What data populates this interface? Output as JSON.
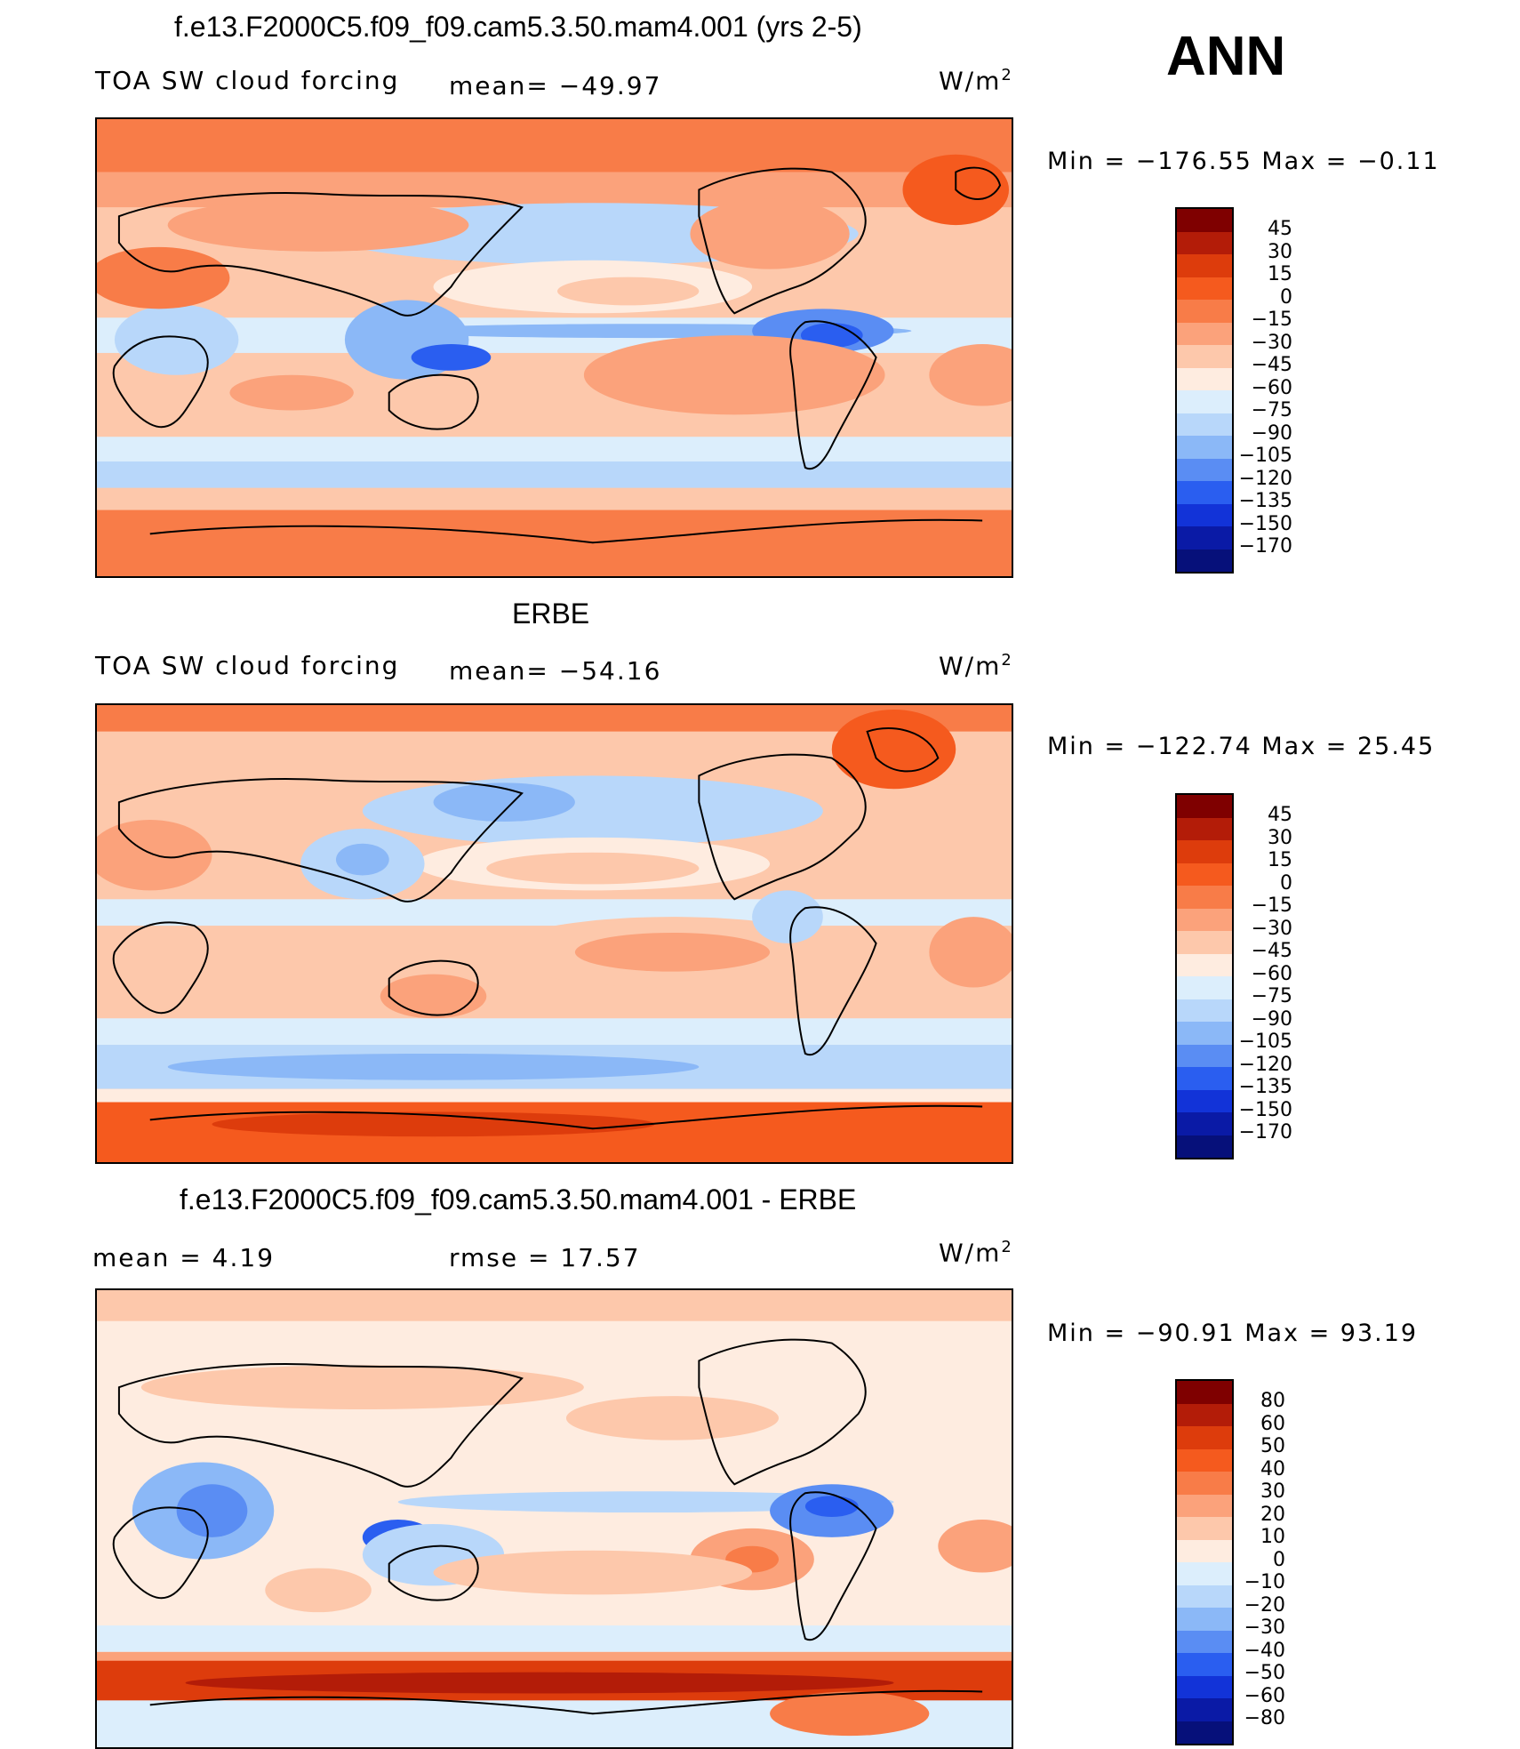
{
  "header": {
    "season": "ANN",
    "units": "W/m",
    "units_exp": "2"
  },
  "panels": [
    {
      "title": "f.e13.F2000C5.f09_f09.cam5.3.50.mam4.001 (yrs 2-5)",
      "left_label": "TOA SW cloud forcing",
      "center_label": "mean=  −49.97",
      "minmax": "Min  =  −176.55  Max  =    −0.11"
    },
    {
      "title": "ERBE",
      "left_label": "TOA SW cloud forcing",
      "center_label": "mean=  −54.16",
      "minmax": "Min  =  −122.74  Max  =    25.45"
    },
    {
      "title": "f.e13.F2000C5.f09_f09.cam5.3.50.mam4.001 - ERBE",
      "left_label": "mean  =     4.19",
      "center_label": "rmse  =    17.57",
      "minmax": "Min  =  −90.91  Max  =    93.19"
    }
  ],
  "colorbars": {
    "fields": {
      "labels": [
        "45",
        "30",
        "15",
        "0",
        "−15",
        "−30",
        "−45",
        "−60",
        "−75",
        "−90",
        "−105",
        "−120",
        "−135",
        "−150",
        "−170"
      ],
      "colors": [
        "#7f0000",
        "#b31c08",
        "#dd3c0c",
        "#f55a1e",
        "#f87c48",
        "#fba27b",
        "#fdc8ab",
        "#feece0",
        "#dceefc",
        "#b8d7fa",
        "#8bb8f7",
        "#5a8df3",
        "#2a5ef0",
        "#1233d8",
        "#0a1aa6",
        "#06107a"
      ]
    },
    "diff": {
      "labels": [
        "80",
        "60",
        "50",
        "40",
        "30",
        "20",
        "10",
        "0",
        "−10",
        "−20",
        "−30",
        "−40",
        "−50",
        "−60",
        "−80"
      ],
      "colors": [
        "#7f0000",
        "#b31c08",
        "#dd3c0c",
        "#f55a1e",
        "#f87c48",
        "#fba27b",
        "#fdc8ab",
        "#feece0",
        "#dceefc",
        "#b8d7fa",
        "#8bb8f7",
        "#5a8df3",
        "#2a5ef0",
        "#1233d8",
        "#0a1aa6",
        "#06107a"
      ]
    }
  }
}
